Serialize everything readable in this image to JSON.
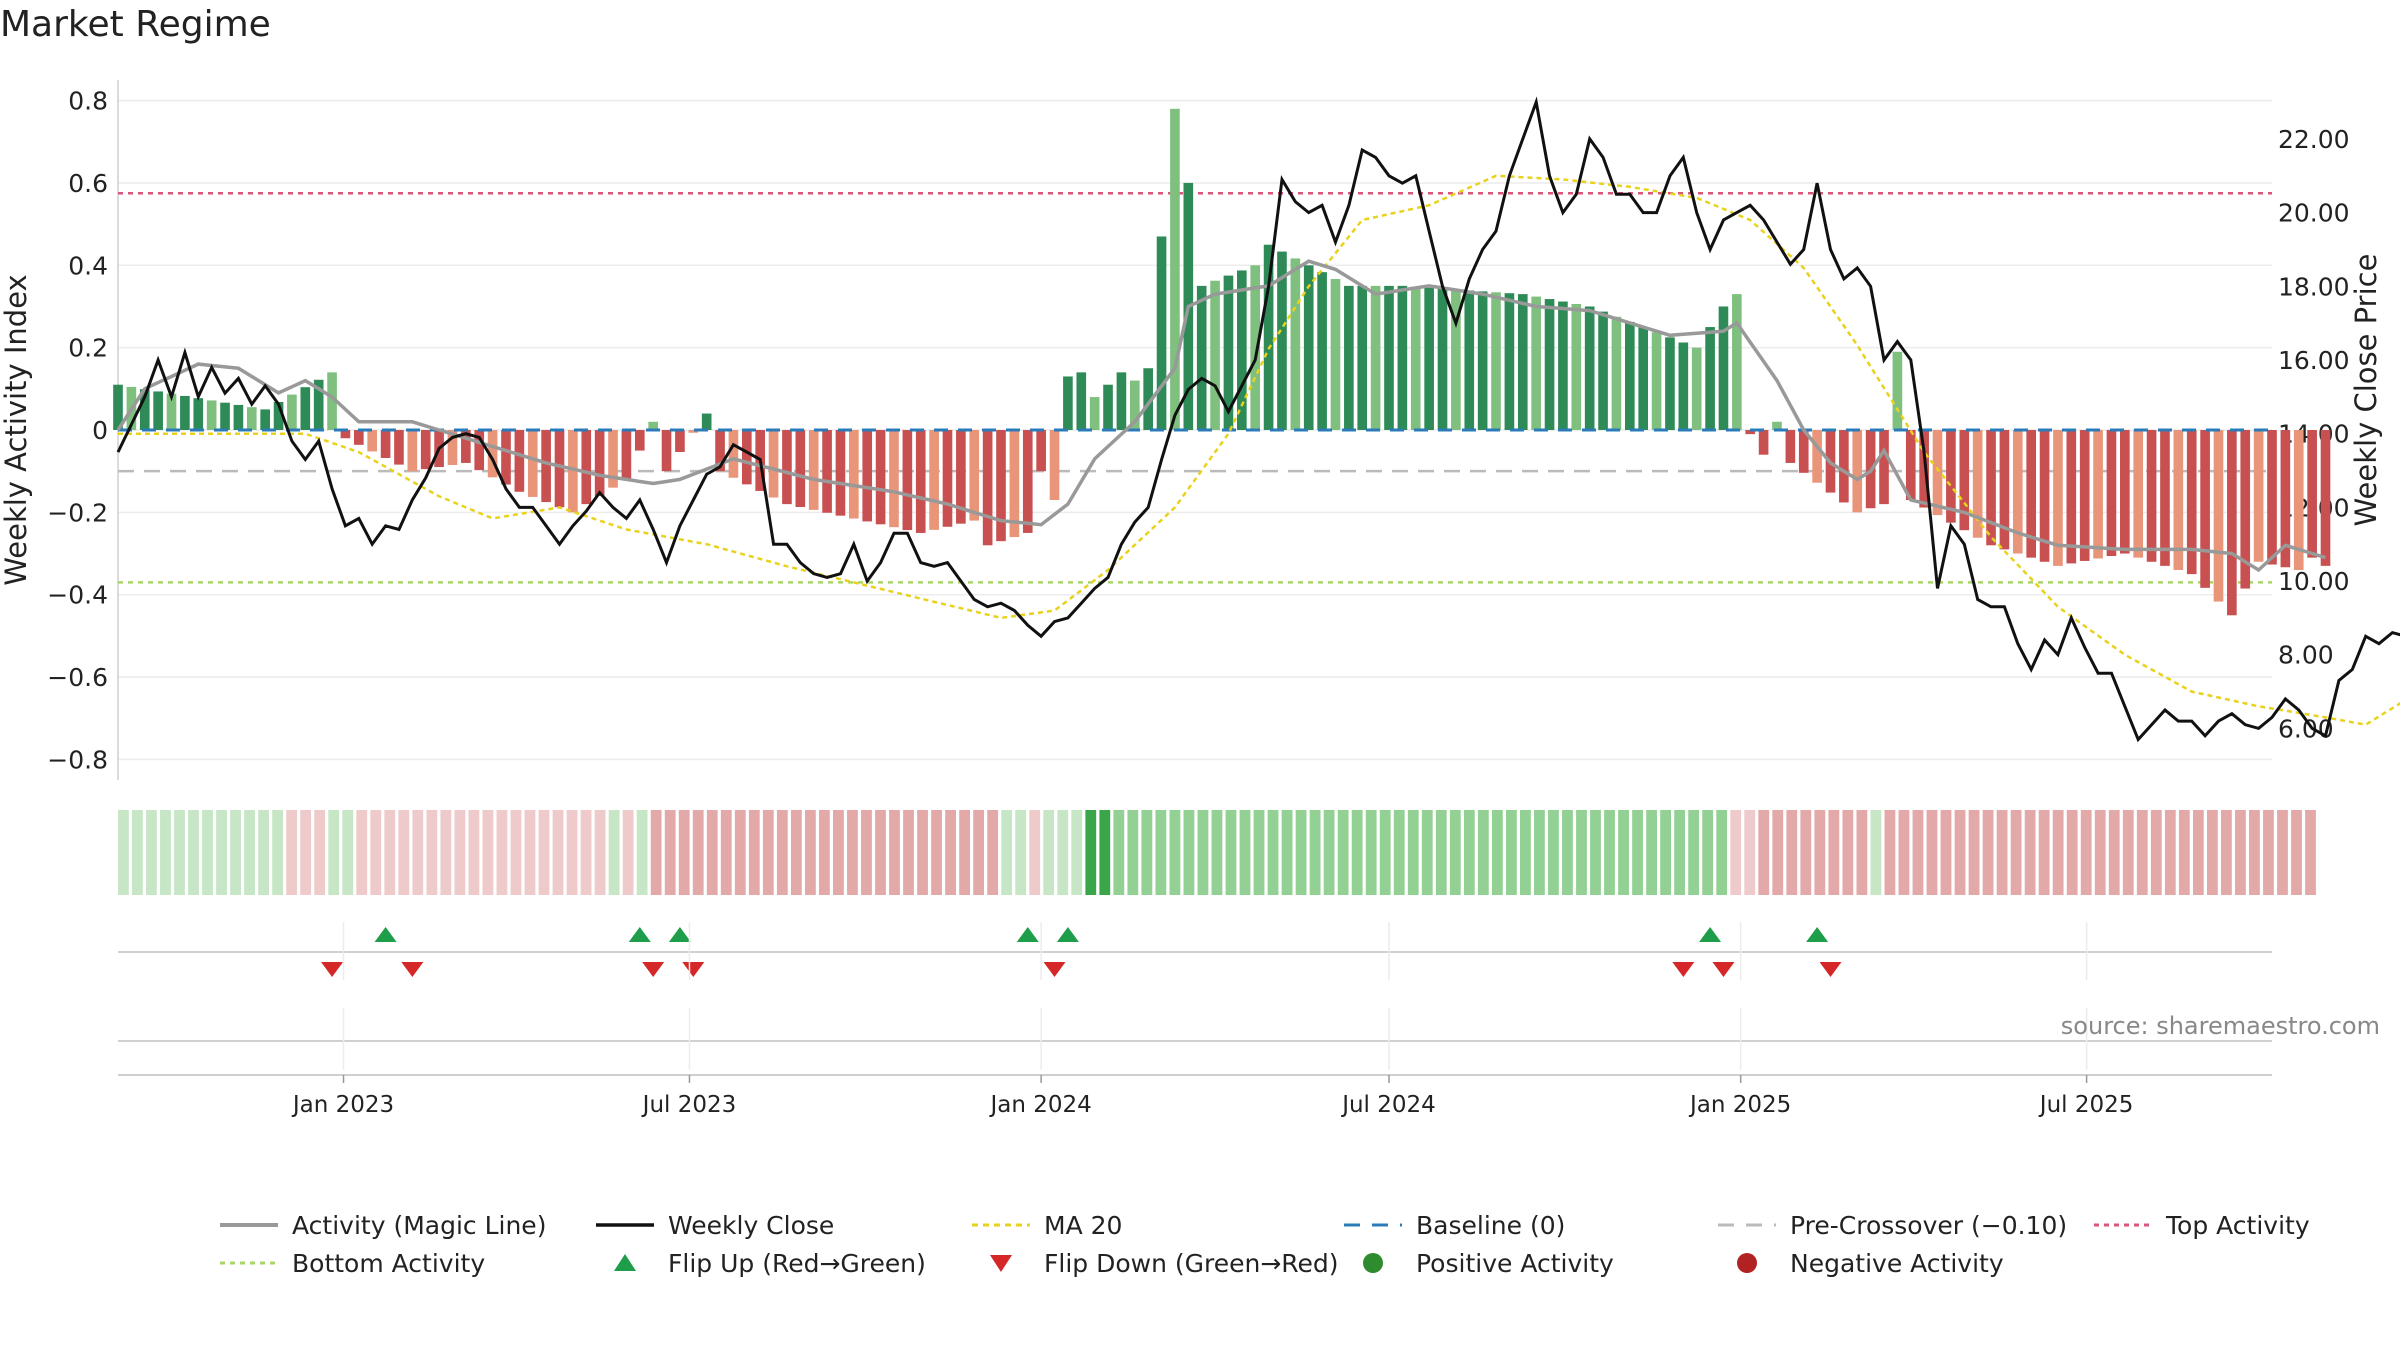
{
  "title": "Market Regime",
  "source": "source: sharemaestro.com",
  "colors": {
    "bar_pos_dark": "#2e8b57",
    "bar_pos_light": "#7fc07f",
    "bar_neg_dark": "#c85050",
    "bar_neg_light": "#e8957a",
    "magic": "#999999",
    "close": "#111111",
    "ma": "#e8d21c",
    "baseline": "#2b7bb9",
    "pre": "#bbbbbb",
    "top": "#d9577a",
    "bottom": "#a9d56a",
    "flip_up": "#1e9e4a",
    "flip_down": "#d62728",
    "pos_dot": "#2e8b2e",
    "neg_dot": "#b22222"
  },
  "chart_data": {
    "type": "bar",
    "x_start": "2022-09-05",
    "x_step_days": 7,
    "xlim": [
      "2022-09-05",
      "2025-10-06"
    ],
    "x_ticks": [
      "Jan 2023",
      "Jul 2023",
      "Jan 2024",
      "Jul 2024",
      "Jan 2025",
      "Jul 2025"
    ],
    "x_tick_dates": [
      "2023-01-01",
      "2023-07-01",
      "2024-01-01",
      "2024-07-01",
      "2025-01-01",
      "2025-07-01"
    ],
    "ylabel": "Weekly Activity Index",
    "ylabel_right": "Weekly Close Price",
    "ylim": [
      -0.85,
      0.85
    ],
    "ylim_right": [
      4.6,
      23.6
    ],
    "y_ticks": [
      "0.8",
      "0.6",
      "0.4",
      "0.2",
      "0",
      "−0.2",
      "−0.4",
      "−0.6",
      "−0.8"
    ],
    "y_tick_values": [
      0.8,
      0.6,
      0.4,
      0.2,
      0,
      -0.2,
      -0.4,
      -0.6,
      -0.8
    ],
    "y_right_ticks": [
      "22.00",
      "20.00",
      "18.00",
      "16.00",
      "14.00",
      "12.00",
      "10.00",
      "8.00",
      "6.00"
    ],
    "y_right_tick_values": [
      22,
      20,
      18,
      16,
      14,
      12,
      10,
      8,
      6
    ],
    "levels": {
      "baseline": 0,
      "pre_crossover": -0.1,
      "top": 0.575,
      "bottom": -0.37
    },
    "activity_key": [
      [
        0,
        0.11
      ],
      [
        11,
        0.05
      ],
      [
        16,
        0.14
      ],
      [
        17,
        -0.02
      ],
      [
        22,
        -0.1
      ],
      [
        26,
        -0.08
      ],
      [
        30,
        -0.15
      ],
      [
        34,
        -0.2
      ],
      [
        38,
        -0.12
      ],
      [
        40,
        0.02
      ],
      [
        41,
        -0.1
      ],
      [
        44,
        0.04
      ],
      [
        45,
        -0.1
      ],
      [
        50,
        -0.18
      ],
      [
        60,
        -0.25
      ],
      [
        64,
        -0.22
      ],
      [
        65,
        -0.28
      ],
      [
        68,
        -0.25
      ],
      [
        69,
        -0.1
      ],
      [
        70,
        -0.17
      ],
      [
        71,
        0.13
      ],
      [
        72,
        0.14
      ],
      [
        73,
        0.08
      ],
      [
        75,
        0.14
      ],
      [
        76,
        0.12
      ],
      [
        77,
        0.15
      ],
      [
        78,
        0.47
      ],
      [
        79,
        0.78
      ],
      [
        80,
        0.6
      ],
      [
        81,
        0.35
      ],
      [
        85,
        0.4
      ],
      [
        86,
        0.45
      ],
      [
        89,
        0.4
      ],
      [
        92,
        0.35
      ],
      [
        96,
        0.35
      ],
      [
        105,
        0.33
      ],
      [
        110,
        0.3
      ],
      [
        114,
        0.25
      ],
      [
        118,
        0.2
      ],
      [
        120,
        0.3
      ],
      [
        121,
        0.33
      ],
      [
        122,
        -0.01
      ],
      [
        123,
        -0.06
      ],
      [
        124,
        0.02
      ],
      [
        125,
        -0.08
      ],
      [
        130,
        -0.2
      ],
      [
        132,
        -0.18
      ],
      [
        133,
        0.19
      ],
      [
        134,
        -0.17
      ],
      [
        140,
        -0.28
      ],
      [
        145,
        -0.33
      ],
      [
        150,
        -0.3
      ],
      [
        155,
        -0.35
      ],
      [
        158,
        -0.45
      ],
      [
        160,
        -0.32
      ],
      [
        163,
        -0.34
      ],
      [
        164,
        -0.31
      ],
      [
        165,
        -0.33
      ]
    ],
    "magic_key": [
      [
        0,
        0.0
      ],
      [
        2,
        0.1
      ],
      [
        6,
        0.16
      ],
      [
        9,
        0.15
      ],
      [
        12,
        0.09
      ],
      [
        14,
        0.12
      ],
      [
        16,
        0.08
      ],
      [
        18,
        0.02
      ],
      [
        22,
        0.02
      ],
      [
        26,
        -0.02
      ],
      [
        32,
        -0.08
      ],
      [
        36,
        -0.11
      ],
      [
        40,
        -0.13
      ],
      [
        42,
        -0.12
      ],
      [
        46,
        -0.07
      ],
      [
        52,
        -0.12
      ],
      [
        58,
        -0.15
      ],
      [
        62,
        -0.18
      ],
      [
        66,
        -0.22
      ],
      [
        69,
        -0.23
      ],
      [
        71,
        -0.18
      ],
      [
        73,
        -0.07
      ],
      [
        76,
        0.02
      ],
      [
        79,
        0.15
      ],
      [
        80,
        0.3
      ],
      [
        82,
        0.33
      ],
      [
        86,
        0.35
      ],
      [
        89,
        0.41
      ],
      [
        91,
        0.39
      ],
      [
        94,
        0.33
      ],
      [
        98,
        0.35
      ],
      [
        102,
        0.33
      ],
      [
        106,
        0.3
      ],
      [
        110,
        0.29
      ],
      [
        114,
        0.25
      ],
      [
        116,
        0.23
      ],
      [
        120,
        0.24
      ],
      [
        121,
        0.26
      ],
      [
        124,
        0.12
      ],
      [
        126,
        0.0
      ],
      [
        128,
        -0.08
      ],
      [
        130,
        -0.12
      ],
      [
        131,
        -0.1
      ],
      [
        132,
        -0.05
      ],
      [
        134,
        -0.17
      ],
      [
        138,
        -0.2
      ],
      [
        142,
        -0.25
      ],
      [
        145,
        -0.28
      ],
      [
        150,
        -0.29
      ],
      [
        155,
        -0.29
      ],
      [
        158,
        -0.3
      ],
      [
        160,
        -0.34
      ],
      [
        162,
        -0.28
      ],
      [
        165,
        -0.31
      ]
    ],
    "close_key": [
      [
        0,
        13.5
      ],
      [
        2,
        15.0
      ],
      [
        3,
        16.0
      ],
      [
        4,
        15.0
      ],
      [
        5,
        16.2
      ],
      [
        6,
        15.0
      ],
      [
        7,
        15.8
      ],
      [
        8,
        15.1
      ],
      [
        9,
        15.5
      ],
      [
        10,
        14.8
      ],
      [
        11,
        15.3
      ],
      [
        12,
        14.8
      ],
      [
        13,
        13.8
      ],
      [
        14,
        13.3
      ],
      [
        15,
        13.8
      ],
      [
        16,
        12.5
      ],
      [
        17,
        11.5
      ],
      [
        18,
        11.7
      ],
      [
        19,
        11.0
      ],
      [
        20,
        11.5
      ],
      [
        21,
        11.4
      ],
      [
        22,
        12.2
      ],
      [
        23,
        12.8
      ],
      [
        24,
        13.6
      ],
      [
        25,
        13.9
      ],
      [
        26,
        14.0
      ],
      [
        27,
        13.9
      ],
      [
        28,
        13.3
      ],
      [
        29,
        12.5
      ],
      [
        30,
        12.0
      ],
      [
        31,
        12.0
      ],
      [
        32,
        11.5
      ],
      [
        33,
        11.0
      ],
      [
        34,
        11.5
      ],
      [
        35,
        11.9
      ],
      [
        36,
        12.4
      ],
      [
        37,
        12.0
      ],
      [
        38,
        11.7
      ],
      [
        39,
        12.2
      ],
      [
        40,
        11.4
      ],
      [
        41,
        10.5
      ],
      [
        42,
        11.5
      ],
      [
        43,
        12.2
      ],
      [
        44,
        12.9
      ],
      [
        45,
        13.1
      ],
      [
        46,
        13.7
      ],
      [
        47,
        13.5
      ],
      [
        48,
        13.3
      ],
      [
        49,
        11.0
      ],
      [
        50,
        11.0
      ],
      [
        51,
        10.5
      ],
      [
        52,
        10.2
      ],
      [
        53,
        10.1
      ],
      [
        54,
        10.2
      ],
      [
        55,
        11.0
      ],
      [
        56,
        10.0
      ],
      [
        57,
        10.5
      ],
      [
        58,
        11.3
      ],
      [
        59,
        11.3
      ],
      [
        60,
        10.5
      ],
      [
        61,
        10.4
      ],
      [
        62,
        10.5
      ],
      [
        63,
        10.0
      ],
      [
        64,
        9.5
      ],
      [
        65,
        9.3
      ],
      [
        66,
        9.4
      ],
      [
        67,
        9.2
      ],
      [
        68,
        8.8
      ],
      [
        69,
        8.5
      ],
      [
        70,
        8.9
      ],
      [
        71,
        9.0
      ],
      [
        72,
        9.4
      ],
      [
        73,
        9.8
      ],
      [
        74,
        10.1
      ],
      [
        75,
        11.0
      ],
      [
        76,
        11.6
      ],
      [
        77,
        12.0
      ],
      [
        78,
        13.3
      ],
      [
        79,
        14.5
      ],
      [
        80,
        15.2
      ],
      [
        81,
        15.5
      ],
      [
        82,
        15.3
      ],
      [
        83,
        14.6
      ],
      [
        84,
        15.3
      ],
      [
        85,
        16.0
      ],
      [
        86,
        18.0
      ],
      [
        87,
        20.9
      ],
      [
        88,
        20.3
      ],
      [
        89,
        20.0
      ],
      [
        90,
        20.2
      ],
      [
        91,
        19.2
      ],
      [
        92,
        20.2
      ],
      [
        93,
        21.7
      ],
      [
        94,
        21.5
      ],
      [
        95,
        21.0
      ],
      [
        96,
        20.8
      ],
      [
        97,
        21.0
      ],
      [
        98,
        19.5
      ],
      [
        99,
        18.0
      ],
      [
        100,
        17.0
      ],
      [
        101,
        18.2
      ],
      [
        102,
        19.0
      ],
      [
        103,
        19.5
      ],
      [
        104,
        21.0
      ],
      [
        105,
        22.0
      ],
      [
        106,
        23.0
      ],
      [
        107,
        21.0
      ],
      [
        108,
        20.0
      ],
      [
        109,
        20.5
      ],
      [
        110,
        22.0
      ],
      [
        111,
        21.5
      ],
      [
        112,
        20.5
      ],
      [
        113,
        20.5
      ],
      [
        114,
        20.0
      ],
      [
        115,
        20.0
      ],
      [
        116,
        21.0
      ],
      [
        117,
        21.5
      ],
      [
        118,
        20.0
      ],
      [
        119,
        19.0
      ],
      [
        120,
        19.8
      ],
      [
        121,
        20.0
      ],
      [
        122,
        20.2
      ],
      [
        123,
        19.8
      ],
      [
        124,
        19.2
      ],
      [
        125,
        18.6
      ],
      [
        126,
        19.0
      ],
      [
        127,
        20.8
      ],
      [
        128,
        19.0
      ],
      [
        129,
        18.2
      ],
      [
        130,
        18.5
      ],
      [
        131,
        18.0
      ],
      [
        132,
        16.0
      ],
      [
        133,
        16.5
      ],
      [
        134,
        16.0
      ],
      [
        135,
        13.5
      ],
      [
        136,
        9.8
      ],
      [
        137,
        11.5
      ],
      [
        138,
        11.0
      ],
      [
        139,
        9.5
      ],
      [
        140,
        9.3
      ],
      [
        141,
        9.3
      ],
      [
        142,
        8.3
      ],
      [
        143,
        7.6
      ],
      [
        144,
        8.4
      ],
      [
        145,
        8.0
      ],
      [
        146,
        9.0
      ],
      [
        147,
        8.2
      ],
      [
        148,
        7.5
      ],
      [
        149,
        7.5
      ],
      [
        150,
        6.6
      ],
      [
        151,
        5.7
      ],
      [
        152,
        6.1
      ],
      [
        153,
        6.5
      ],
      [
        154,
        6.2
      ],
      [
        155,
        6.2
      ],
      [
        156,
        5.8
      ],
      [
        157,
        6.2
      ],
      [
        158,
        6.4
      ],
      [
        159,
        6.1
      ],
      [
        160,
        6.0
      ],
      [
        161,
        6.3
      ],
      [
        162,
        6.8
      ],
      [
        163,
        6.5
      ],
      [
        164,
        6.0
      ],
      [
        165,
        5.8
      ]
    ],
    "close_tail": [
      7.3,
      7.6,
      8.5,
      8.3,
      8.6,
      8.5,
      8.6
    ],
    "ma_key": [
      [
        0,
        14.0
      ],
      [
        14,
        14.0
      ],
      [
        18,
        13.5
      ],
      [
        24,
        12.3
      ],
      [
        28,
        11.7
      ],
      [
        33,
        12.0
      ],
      [
        38,
        11.4
      ],
      [
        44,
        11.0
      ],
      [
        50,
        10.4
      ],
      [
        58,
        9.7
      ],
      [
        66,
        9.0
      ],
      [
        70,
        9.2
      ],
      [
        74,
        10.3
      ],
      [
        79,
        12.0
      ],
      [
        83,
        14.0
      ],
      [
        86,
        16.3
      ],
      [
        89,
        18.0
      ],
      [
        93,
        19.8
      ],
      [
        98,
        20.2
      ],
      [
        103,
        21.0
      ],
      [
        108,
        20.9
      ],
      [
        113,
        20.7
      ],
      [
        118,
        20.4
      ],
      [
        122,
        19.8
      ],
      [
        126,
        18.5
      ],
      [
        130,
        16.4
      ],
      [
        135,
        13.5
      ],
      [
        140,
        11.2
      ],
      [
        145,
        9.3
      ],
      [
        150,
        8.0
      ],
      [
        155,
        7.0
      ],
      [
        160,
        6.6
      ],
      [
        165,
        6.3
      ],
      [
        168,
        6.1
      ],
      [
        172,
        7.0
      ]
    ],
    "band_regime": [
      [
        0,
        12,
        "pos-light"
      ],
      [
        12,
        15,
        "neg-pale"
      ],
      [
        15,
        17,
        "pos-light"
      ],
      [
        17,
        35,
        "neg-pale"
      ],
      [
        35,
        36,
        "pos-light"
      ],
      [
        36,
        37,
        "neg-pale"
      ],
      [
        37,
        38,
        "pos-light"
      ],
      [
        38,
        63,
        "neg"
      ],
      [
        63,
        65,
        "pos-light"
      ],
      [
        65,
        66,
        "neg-pale"
      ],
      [
        66,
        69,
        "pos-light"
      ],
      [
        69,
        71,
        "pos-dark"
      ],
      [
        71,
        115,
        "pos"
      ],
      [
        115,
        117,
        "neg-pale"
      ],
      [
        117,
        125,
        "neg"
      ],
      [
        125,
        126,
        "pos-light"
      ],
      [
        126,
        157,
        "neg"
      ]
    ],
    "flips_up": [
      "2023-01-23",
      "2023-06-05",
      "2023-06-26",
      "2023-12-25",
      "2024-01-15",
      "2024-12-16",
      "2025-02-10"
    ],
    "flips_down": [
      "2022-12-26",
      "2023-02-06",
      "2023-06-12",
      "2023-07-03",
      "2024-01-08",
      "2024-12-02",
      "2024-12-23",
      "2025-02-17"
    ],
    "legend": [
      "Activity (Magic Line)",
      "Weekly Close",
      "MA 20",
      "Baseline (0)",
      "Pre-Crossover (−0.10)",
      "Top Activity",
      "Bottom Activity",
      "Flip Up (Red→Green)",
      "Flip Down (Green→Red)",
      "Positive Activity",
      "Negative Activity"
    ]
  }
}
